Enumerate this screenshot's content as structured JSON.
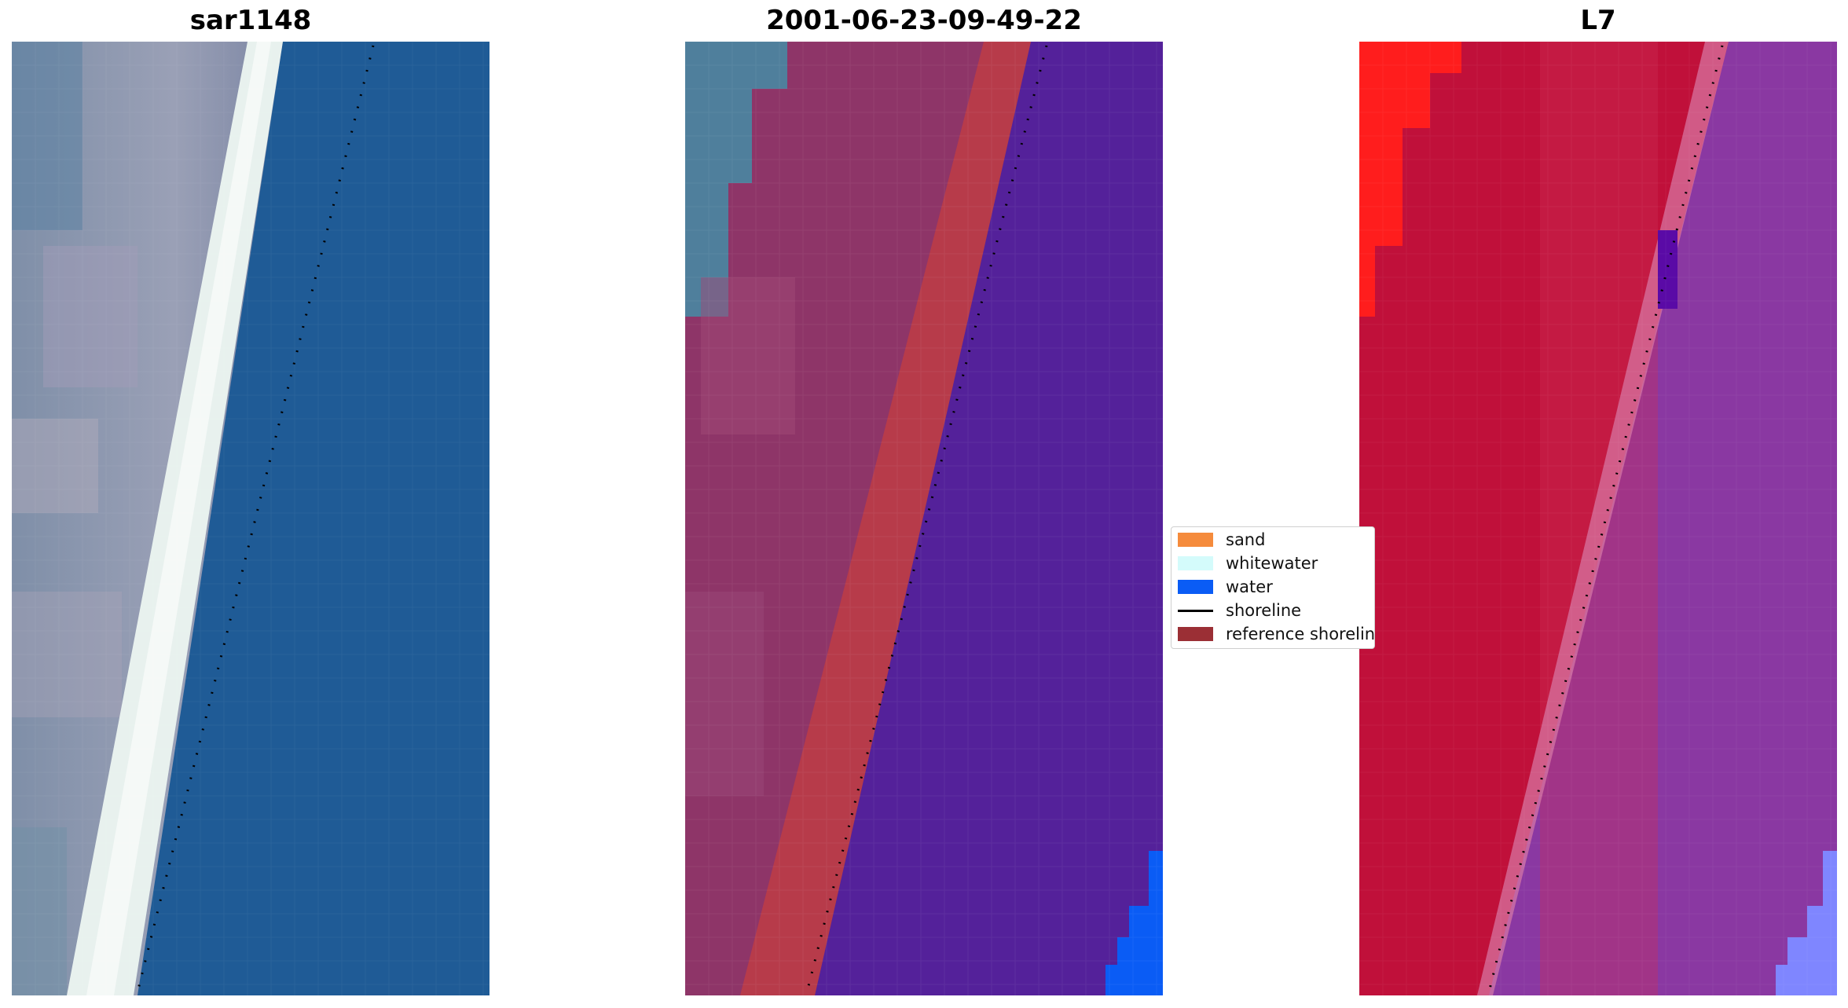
{
  "panels": [
    {
      "title": "sar1148"
    },
    {
      "title": "2001-06-23-09-49-22"
    },
    {
      "title": "L7"
    }
  ],
  "legend": {
    "placement": "center",
    "items": [
      {
        "label": "sand",
        "color": "#f58b3c",
        "kind": "patch"
      },
      {
        "label": "whitewater",
        "color": "#d4fbfb",
        "kind": "patch"
      },
      {
        "label": "water",
        "color": "#0a5cf5",
        "kind": "patch"
      },
      {
        "label": "shoreline",
        "color": "#000000",
        "kind": "line"
      },
      {
        "label": "reference shoreline",
        "color": "#9b2f35",
        "kind": "patch"
      }
    ]
  },
  "colors": {
    "rgb_water": "#1f5b96",
    "rgb_land": "#8a93ad",
    "rgb_whitewater": "#e8f1ee",
    "class_land": "#8e3568",
    "class_buffer": "#b73b4a",
    "class_water": "#54219a",
    "class_true_water": "#0a5cf5",
    "index_land": "#c0103a",
    "index_land_bright": "#ff1d1d",
    "index_water": "#8a38a2",
    "index_edge": "#a5eaff"
  }
}
